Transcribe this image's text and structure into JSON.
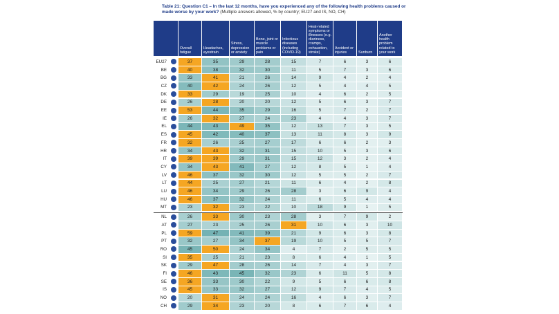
{
  "title": "Table 21: Question C1 – In the last 12 months, have you experienced any of the following health problems caused or made worse by your work?",
  "subtitle": "(Multiple answers allowed, % by country; EU27 and IS, NO, CH)",
  "table": {
    "columns": [
      "Overall fatigue",
      "Headaches, eyestrain",
      "Stress, depression or anxiety",
      "Bone, joint or muscle problems or pain",
      "Infectious diseases (including COVID-19)",
      "Heat-related symptoms or illnesses (e.g. dizziness, cramps, exhaustion, stroke)",
      "Accident or injuries",
      "Sunburn",
      "Another health problem related to your work"
    ],
    "rows": [
      [
        "EU27",
        37,
        35,
        29,
        28,
        15,
        7,
        6,
        3,
        6
      ],
      [
        "BE",
        40,
        38,
        32,
        30,
        11,
        5,
        7,
        3,
        6
      ],
      [
        "BG",
        33,
        41,
        21,
        26,
        14,
        9,
        4,
        2,
        4
      ],
      [
        "CZ",
        40,
        42,
        24,
        26,
        12,
        5,
        4,
        4,
        5
      ],
      [
        "DK",
        33,
        29,
        19,
        25,
        10,
        4,
        6,
        2,
        5
      ],
      [
        "DE",
        26,
        28,
        20,
        20,
        12,
        5,
        6,
        3,
        7
      ],
      [
        "EE",
        53,
        44,
        35,
        29,
        16,
        5,
        7,
        2,
        7
      ],
      [
        "IE",
        26,
        32,
        27,
        24,
        23,
        4,
        4,
        3,
        7
      ],
      [
        "EL",
        44,
        43,
        49,
        35,
        12,
        13,
        7,
        3,
        5
      ],
      [
        "ES",
        45,
        42,
        40,
        37,
        13,
        11,
        8,
        3,
        9
      ],
      [
        "FR",
        32,
        26,
        25,
        27,
        17,
        6,
        6,
        2,
        3
      ],
      [
        "HR",
        34,
        43,
        32,
        31,
        15,
        10,
        5,
        3,
        6
      ],
      [
        "IT",
        39,
        39,
        29,
        31,
        15,
        12,
        3,
        2,
        4
      ],
      [
        "CY",
        34,
        43,
        41,
        27,
        12,
        8,
        5,
        1,
        4
      ],
      [
        "LV",
        46,
        37,
        32,
        30,
        12,
        5,
        5,
        2,
        7
      ],
      [
        "LT",
        44,
        25,
        27,
        21,
        11,
        6,
        4,
        2,
        8
      ],
      [
        "LU",
        46,
        34,
        29,
        26,
        28,
        3,
        6,
        9,
        4
      ],
      [
        "HU",
        46,
        37,
        32,
        24,
        11,
        6,
        5,
        4,
        4
      ],
      [
        "MT",
        23,
        32,
        23,
        22,
        10,
        18,
        9,
        1,
        5
      ],
      [
        "NL",
        26,
        33,
        30,
        23,
        28,
        3,
        7,
        9,
        2
      ],
      [
        "AT",
        27,
        23,
        25,
        26,
        31,
        10,
        6,
        3,
        10
      ],
      [
        "PL",
        59,
        47,
        41,
        39,
        21,
        9,
        6,
        3,
        8
      ],
      [
        "PT",
        32,
        27,
        34,
        37,
        19,
        10,
        5,
        5,
        7
      ],
      [
        "RO",
        45,
        50,
        24,
        34,
        4,
        7,
        2,
        5,
        5
      ],
      [
        "SI",
        35,
        25,
        21,
        23,
        8,
        6,
        4,
        1,
        5
      ],
      [
        "SK",
        29,
        47,
        28,
        26,
        14,
        7,
        4,
        3,
        7
      ],
      [
        "FI",
        46,
        43,
        45,
        32,
        23,
        6,
        11,
        5,
        8
      ],
      [
        "SE",
        36,
        33,
        30,
        22,
        9,
        5,
        6,
        6,
        8
      ],
      [
        "IS",
        45,
        33,
        32,
        27,
        12,
        9,
        7,
        4,
        5
      ],
      [
        "NO",
        20,
        31,
        24,
        24,
        16,
        4,
        6,
        3,
        7
      ],
      [
        "CH",
        29,
        34,
        23,
        20,
        8,
        6,
        7,
        6,
        4
      ]
    ]
  }
}
